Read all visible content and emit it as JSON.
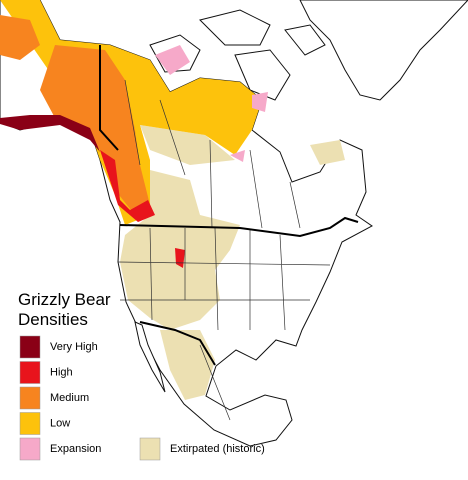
{
  "legend": {
    "title": "Grizzly Bear Densities",
    "items": [
      {
        "label": "Very High",
        "color": "#8a0016"
      },
      {
        "label": "High",
        "color": "#e8141c"
      },
      {
        "label": "Medium",
        "color": "#f7841f"
      },
      {
        "label": "Low",
        "color": "#fdc20c"
      },
      {
        "label": "Expansion",
        "color": "#f6a9c9"
      },
      {
        "label": "Extirpated (historic)",
        "color": "#ece0b2"
      }
    ]
  }
}
